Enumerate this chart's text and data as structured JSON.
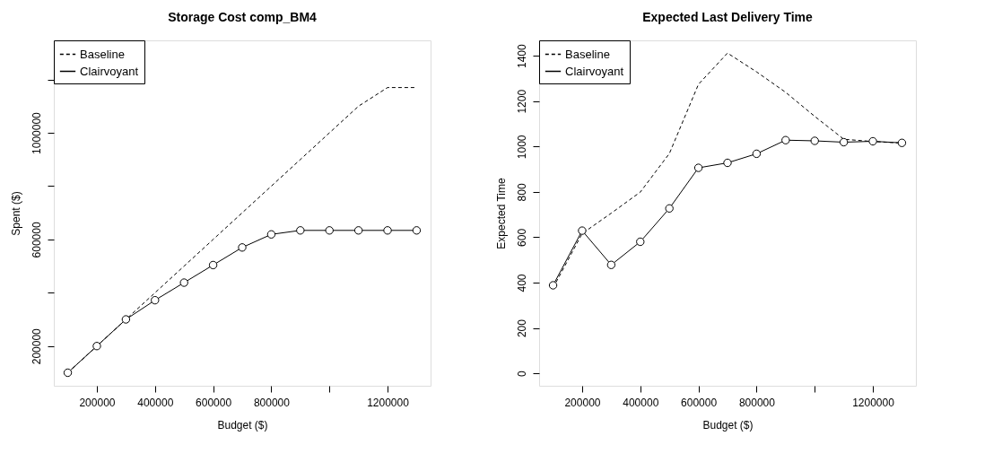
{
  "chart_data": [
    {
      "type": "line",
      "title": "Storage Cost comp_BM4",
      "xlabel": "Budget ($)",
      "ylabel": "Spent ($)",
      "x": [
        100000,
        200000,
        300000,
        400000,
        500000,
        600000,
        700000,
        800000,
        900000,
        1000000,
        1100000,
        1200000,
        1300000
      ],
      "series": [
        {
          "name": "Baseline",
          "color": "#000000",
          "line_style": "dashed",
          "marker": "none",
          "values": [
            100000,
            200000,
            300000,
            400000,
            500000,
            600000,
            700000,
            800000,
            900000,
            1000000,
            1100000,
            1170000,
            1170000
          ]
        },
        {
          "name": "Clairvoyant",
          "color": "#000000",
          "line_style": "solid",
          "marker": "circle",
          "values": [
            100000,
            200000,
            300000,
            372000,
            438000,
            504000,
            570000,
            619000,
            634000,
            634000,
            634000,
            634000,
            634000
          ]
        }
      ],
      "xlim": [
        52000,
        1348000
      ],
      "ylim": [
        51000,
        1347000
      ],
      "xticks": [
        200000,
        400000,
        600000,
        800000,
        {
          "value": 1000000,
          "label": null
        },
        1200000
      ],
      "yticks": [
        200000,
        {
          "value": 400000,
          "label": null
        },
        600000,
        {
          "value": 800000,
          "label": null
        },
        1000000,
        {
          "value": 1200000,
          "label": null
        }
      ],
      "grid": false,
      "legend": "top left"
    },
    {
      "type": "line",
      "title": "Expected Last Delivery Time",
      "xlabel": "Budget ($)",
      "ylabel": "Expected Time",
      "x": [
        100000,
        200000,
        300000,
        400000,
        500000,
        600000,
        700000,
        800000,
        900000,
        1000000,
        1100000,
        1200000,
        1300000
      ],
      "series": [
        {
          "name": "Baseline",
          "color": "#000000",
          "line_style": "dashed",
          "marker": "none",
          "values": [
            377,
            616,
            706,
            799,
            969,
            1274,
            1412,
            1329,
            1239,
            1133,
            1032,
            1022,
            1015
          ]
        },
        {
          "name": "Clairvoyant",
          "color": "#000000",
          "line_style": "solid",
          "marker": "circle",
          "values": [
            388,
            629,
            478,
            580,
            727,
            906,
            928,
            968,
            1028,
            1025,
            1019,
            1023,
            1016
          ]
        }
      ],
      "xlim": [
        52000,
        1348000
      ],
      "ylim": [
        -55,
        1468
      ],
      "xticks": [
        200000,
        400000,
        600000,
        800000,
        {
          "value": 1000000,
          "label": null
        },
        1200000
      ],
      "yticks": [
        0,
        200,
        400,
        600,
        800,
        1000,
        1200,
        1400
      ],
      "grid": false,
      "legend": "top left"
    }
  ]
}
